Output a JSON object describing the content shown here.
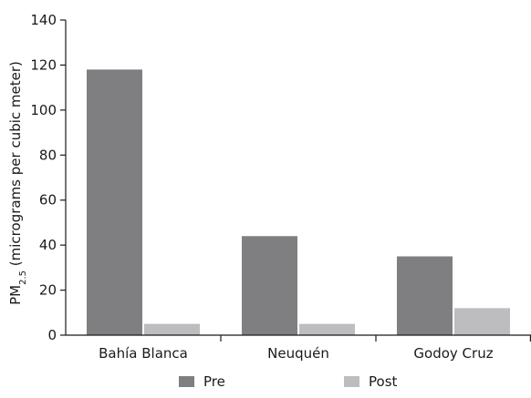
{
  "chart_data": {
    "type": "bar",
    "title": "",
    "xlabel": "",
    "ylabel": {
      "prefix": "PM",
      "subscript": "2.5",
      "suffix": " (micrograms per cubic meter)"
    },
    "categories": [
      "Bahía Blanca",
      "Neuquén",
      "Godoy Cruz"
    ],
    "series": [
      {
        "name": "Pre",
        "color": "#7f7f81",
        "values": [
          118,
          44,
          35
        ]
      },
      {
        "name": "Post",
        "color": "#bdbdbf",
        "values": [
          5,
          5,
          12
        ]
      }
    ],
    "ylim": [
      0,
      140
    ],
    "yticks": [
      "0",
      "20",
      "40",
      "60",
      "80",
      "100",
      "120",
      "140"
    ],
    "grid": false,
    "legend": "bottom"
  }
}
